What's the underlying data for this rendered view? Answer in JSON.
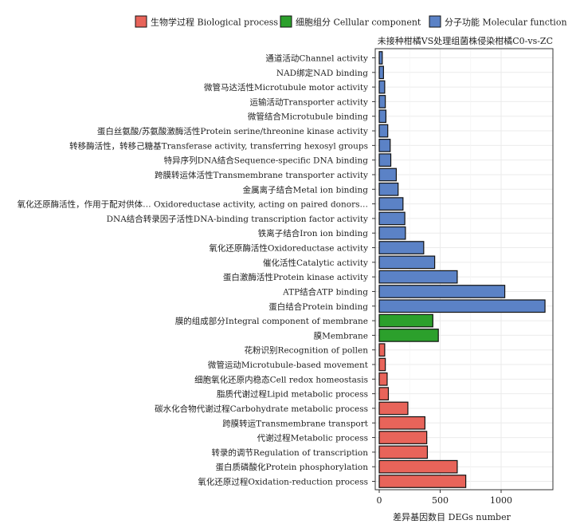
{
  "chart_data": {
    "type": "bar",
    "orientation": "horizontal",
    "title": "未接种柑橘VS处理组菌株侵染柑橘C0-vs-ZC",
    "xlabel": "差异基因数目 DEGs number",
    "ylabel": "",
    "xlim": [
      0,
      1400
    ],
    "x_ticks": [
      "0",
      "500",
      "1000"
    ],
    "x_tick_values": [
      0,
      500,
      1000
    ],
    "grid": true,
    "legend_position": "top",
    "legend": [
      {
        "name": "生物学过程 Biological process",
        "color": "#E8645A"
      },
      {
        "name": "细胞组分 Cellular component",
        "color": "#2CA02C"
      },
      {
        "name": "分子功能 Molecular function",
        "color": "#5B82C6"
      }
    ],
    "categories": [
      {
        "label": "通道活动Channel activity",
        "value": 25,
        "group": 2
      },
      {
        "label": "NAD绑定NAD binding",
        "value": 35,
        "group": 2
      },
      {
        "label": "微管马达活性Microtubule motor activity",
        "value": 45,
        "group": 2
      },
      {
        "label": "运输活动Transporter activity",
        "value": 50,
        "group": 2
      },
      {
        "label": "微管结合Microtubule binding",
        "value": 55,
        "group": 2
      },
      {
        "label": "蛋白丝氨酸/苏氨酸激酶活性Protein serine/threonine kinase activity",
        "value": 70,
        "group": 2
      },
      {
        "label": "转移酶活性，转移己糖基Transferase activity, transferring hexosyl groups",
        "value": 90,
        "group": 2
      },
      {
        "label": "特异序列DNA结合Sequence-specific DNA binding",
        "value": 95,
        "group": 2
      },
      {
        "label": "跨膜转运体活性Transmembrane transporter activity",
        "value": 140,
        "group": 2
      },
      {
        "label": "金属离子结合Metal ion binding",
        "value": 155,
        "group": 2
      },
      {
        "label": "氧化还原酶活性，作用于配对供体… Oxidoreductase activity, acting on paired donors…",
        "value": 195,
        "group": 2
      },
      {
        "label": "DNA结合转录因子活性DNA-binding transcription factor activity",
        "value": 210,
        "group": 2
      },
      {
        "label": "铁离子结合Iron ion binding",
        "value": 215,
        "group": 2
      },
      {
        "label": "氧化还原酶活性Oxidoreductase activity",
        "value": 365,
        "group": 2
      },
      {
        "label": "催化活性Catalytic activity",
        "value": 455,
        "group": 2
      },
      {
        "label": "蛋白激酶活性Protein kinase activity",
        "value": 640,
        "group": 2
      },
      {
        "label": "ATP结合ATP binding",
        "value": 1030,
        "group": 2
      },
      {
        "label": "蛋白结合Protein binding",
        "value": 1360,
        "group": 2
      },
      {
        "label": "膜的组成部分Integral component of membrane",
        "value": 440,
        "group": 1
      },
      {
        "label": "膜Membrane",
        "value": 485,
        "group": 1
      },
      {
        "label": "花粉识别Recognition of pollen",
        "value": 45,
        "group": 0
      },
      {
        "label": "微管运动Microtubule-based movement",
        "value": 50,
        "group": 0
      },
      {
        "label": "细胞氧化还原内稳态Cell redox homeostasis",
        "value": 65,
        "group": 0
      },
      {
        "label": "脂质代谢过程Lipid metabolic process",
        "value": 75,
        "group": 0
      },
      {
        "label": "碳水化合物代谢过程Carbohydrate metabolic process",
        "value": 235,
        "group": 0
      },
      {
        "label": "跨膜转运Transmembrane transport",
        "value": 375,
        "group": 0
      },
      {
        "label": "代谢过程Metabolic process",
        "value": 390,
        "group": 0
      },
      {
        "label": "转录的调节Regulation of transcription",
        "value": 395,
        "group": 0
      },
      {
        "label": "蛋白质磷酸化Protein phosphorylation",
        "value": 640,
        "group": 0
      },
      {
        "label": "氧化还原过程Oxidation-reduction process",
        "value": 710,
        "group": 0
      }
    ]
  }
}
